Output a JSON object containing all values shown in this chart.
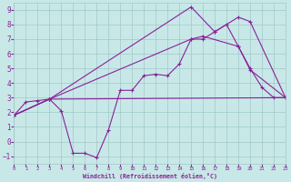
{
  "bg_color": "#c8e8e8",
  "line_color": "#882299",
  "grid_color": "#a0c8c8",
  "xlabel": "Windchill (Refroidissement éolien,°C)",
  "series": {
    "line1_x": [
      0,
      1,
      2,
      3,
      4,
      5,
      6,
      7,
      8,
      9,
      10,
      11,
      12,
      13,
      14,
      15,
      16,
      17,
      18,
      19,
      20,
      21,
      22,
      23
    ],
    "line1_y": [
      1.8,
      2.7,
      2.8,
      2.9,
      2.1,
      -0.8,
      -0.8,
      -1.1,
      0.8,
      3.5,
      3.5,
      4.5,
      4.6,
      4.5,
      5.3,
      7.0,
      7.0,
      7.5,
      8.0,
      6.5,
      5.0,
      3.7,
      3.0,
      3.0
    ],
    "line2_x": [
      0,
      3,
      15,
      17,
      19,
      20,
      23
    ],
    "line2_y": [
      1.8,
      2.9,
      9.2,
      7.5,
      8.5,
      8.2,
      3.0
    ],
    "line3_x": [
      0,
      3,
      15,
      16,
      19,
      20,
      23
    ],
    "line3_y": [
      1.8,
      2.9,
      7.0,
      7.2,
      6.5,
      4.9,
      3.0
    ],
    "line4_x": [
      0,
      3,
      23
    ],
    "line4_y": [
      1.8,
      2.9,
      3.0
    ]
  },
  "xlim": [
    0,
    23
  ],
  "ylim": [
    -1.5,
    9.5
  ],
  "xticks": [
    0,
    1,
    2,
    3,
    4,
    5,
    6,
    7,
    8,
    9,
    10,
    11,
    12,
    13,
    14,
    15,
    16,
    17,
    18,
    19,
    20,
    21,
    22,
    23
  ],
  "yticks": [
    -1,
    0,
    1,
    2,
    3,
    4,
    5,
    6,
    7,
    8,
    9
  ],
  "xticklabels": [
    "0",
    "1",
    "2",
    "3",
    "4",
    "5",
    "6",
    "7",
    "8",
    "9",
    "10",
    "11",
    "12",
    "13",
    "14",
    "15",
    "16",
    "17",
    "18",
    "19",
    "20",
    "21",
    "22",
    "23"
  ]
}
